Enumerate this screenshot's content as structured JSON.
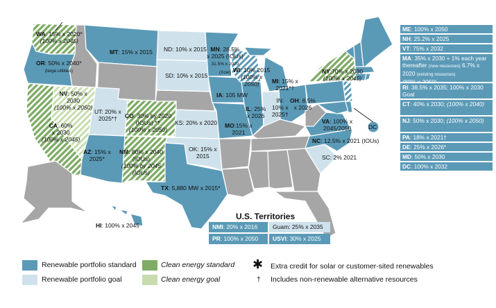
{
  "colors": {
    "standard": "#5b9ab7",
    "goal": "#cfe2ec",
    "clean_standard": "#7fab66",
    "clean_goal": "#c6dcae",
    "none": "#a6a6a6"
  },
  "states": {
    "wa": {
      "abbr": "WA",
      "text": ": 15% x 2020*",
      "line2": "(100% x 2045)"
    },
    "or": {
      "abbr": "OR",
      "text": ": 50% x 2040*",
      "line2": "(large utilities)"
    },
    "ca": {
      "abbr": "CA",
      "text": ": 60%",
      "line2": "x 2030",
      "line3": "(100% x 2045)"
    },
    "nv": {
      "abbr": "NV",
      "text": ": 50% x",
      "line2": "2030",
      "line3": "(100% x 2050)"
    },
    "ut": {
      "text": "UT: 20% x",
      "line2": "2025*†"
    },
    "az": {
      "abbr": "AZ",
      "text": ": 15% x",
      "line2": "2025*"
    },
    "mt": {
      "abbr": "MT",
      "text": ": 15% x 2015"
    },
    "co": {
      "abbr": "CO",
      "text": ": 30% by 2020",
      "line2": "(IOUs) *†",
      "line3": "(100% x 2050)"
    },
    "nm": {
      "abbr": "NM",
      "text": ": 80% x 2040",
      "line2": "(IOUs)",
      "line3": "(100% by 2045",
      "line4": "(IOUs)"
    },
    "nd": {
      "text": "ND: 10% x 2015"
    },
    "sd": {
      "text": "SD: 10% x 2015"
    },
    "mn": {
      "abbr": "MN",
      "text": ": 26.5%",
      "line2": "x 2025 (IOUs)",
      "line3": "31.5% x 2020",
      "line4": "(Xcel)"
    },
    "ks": {
      "text": "KS: 20% x 2020"
    },
    "ok": {
      "text": "OK: 15% x",
      "line2": "2015"
    },
    "tx": {
      "abbr": "TX",
      "text": ": 5,880 MW x 2015*"
    },
    "ia": {
      "abbr": "IA",
      "text": ": 105 MW"
    },
    "wi": {
      "abbr": "WI",
      "text": ": 10% 2015",
      "line2": "(100% x",
      "line3": "2050)"
    },
    "mo": {
      "abbr": "MO",
      "text": ":15% x",
      "line2": "2021"
    },
    "il": {
      "abbr": "IL",
      "text": ": 25%",
      "line2": "x 2026"
    },
    "in": {
      "text": "IN:",
      "line2": "10% x",
      "line3": "2025†"
    },
    "mi": {
      "abbr": "MI",
      "text": ": 15% x",
      "line2": "2021*†"
    },
    "oh": {
      "abbr": "OH",
      "text": ": 8.5%",
      "line2": "x 2026"
    },
    "ny": {
      "abbr": "NY",
      "text": ":70% x 2030",
      "line2": "(100% x 2040)"
    },
    "va": {
      "abbr": "VA",
      "text": ": 100% x",
      "line2": "2045/2050"
    },
    "nc": {
      "abbr": "NC",
      "text": ": 12.5% x 2021 (IOUs)"
    },
    "sc": {
      "text": "SC: 2% 2021"
    },
    "dc": {
      "text": "DC"
    },
    "hi": {
      "abbr": "HI",
      "text": ": 100% x 2045"
    }
  },
  "sidebar": [
    {
      "abbr": "ME",
      "text": ": 100% x 2050"
    },
    {
      "abbr": "NH",
      "text": ": 25.2% x 2025"
    },
    {
      "abbr": "VT",
      "text": ": 75% x 2032"
    },
    {
      "abbr": "MA",
      "text": ": 35% x 2030 + 1% each year thereafter",
      "note1": "(new resources)",
      "text2": "6.7% x 2020",
      "note2": "(existing resources)",
      "text3": "(80% x 2050)"
    },
    {
      "abbr": "RI",
      "text": ": 38.5% x 2035; 100% x 2030 Goal"
    },
    {
      "abbr": "CT",
      "text": ": 40% x 2030;",
      "text2": "(100% x 2040)"
    },
    {
      "abbr": "NJ",
      "text": ": 50% x 2030;",
      "text2": "(100% x 2050)"
    },
    {
      "abbr": "PA",
      "text": ": 18% x 2021†"
    },
    {
      "abbr": "DE",
      "text": ": 25% x 2026*"
    },
    {
      "abbr": "MD",
      "text": ": 50% x 2030"
    },
    {
      "abbr": "DC",
      "text": ": 100% x 2032"
    }
  ],
  "territories": {
    "title": "U.S. Territories",
    "nmi": {
      "abbr": "NMI",
      "text": ": 20% x 2016"
    },
    "guam": {
      "text": "Guam: 25% x 2035"
    },
    "pr": {
      "abbr": "PR",
      "text": ": 100% x 2050"
    },
    "usvi": {
      "abbr": "USVI",
      "text": ": 30% x 2025"
    }
  },
  "legend": {
    "rps": "Renewable portfolio standard",
    "rpg": "Renewable portfolio goal",
    "ces": "Clean energy standard",
    "ceg": "Clean energy goal",
    "star_symbol": "✱",
    "star_text": "Extra credit for solar or customer-sited renewables",
    "dagger_symbol": "†",
    "dagger_text": "Includes non-renewable alternative resources"
  }
}
